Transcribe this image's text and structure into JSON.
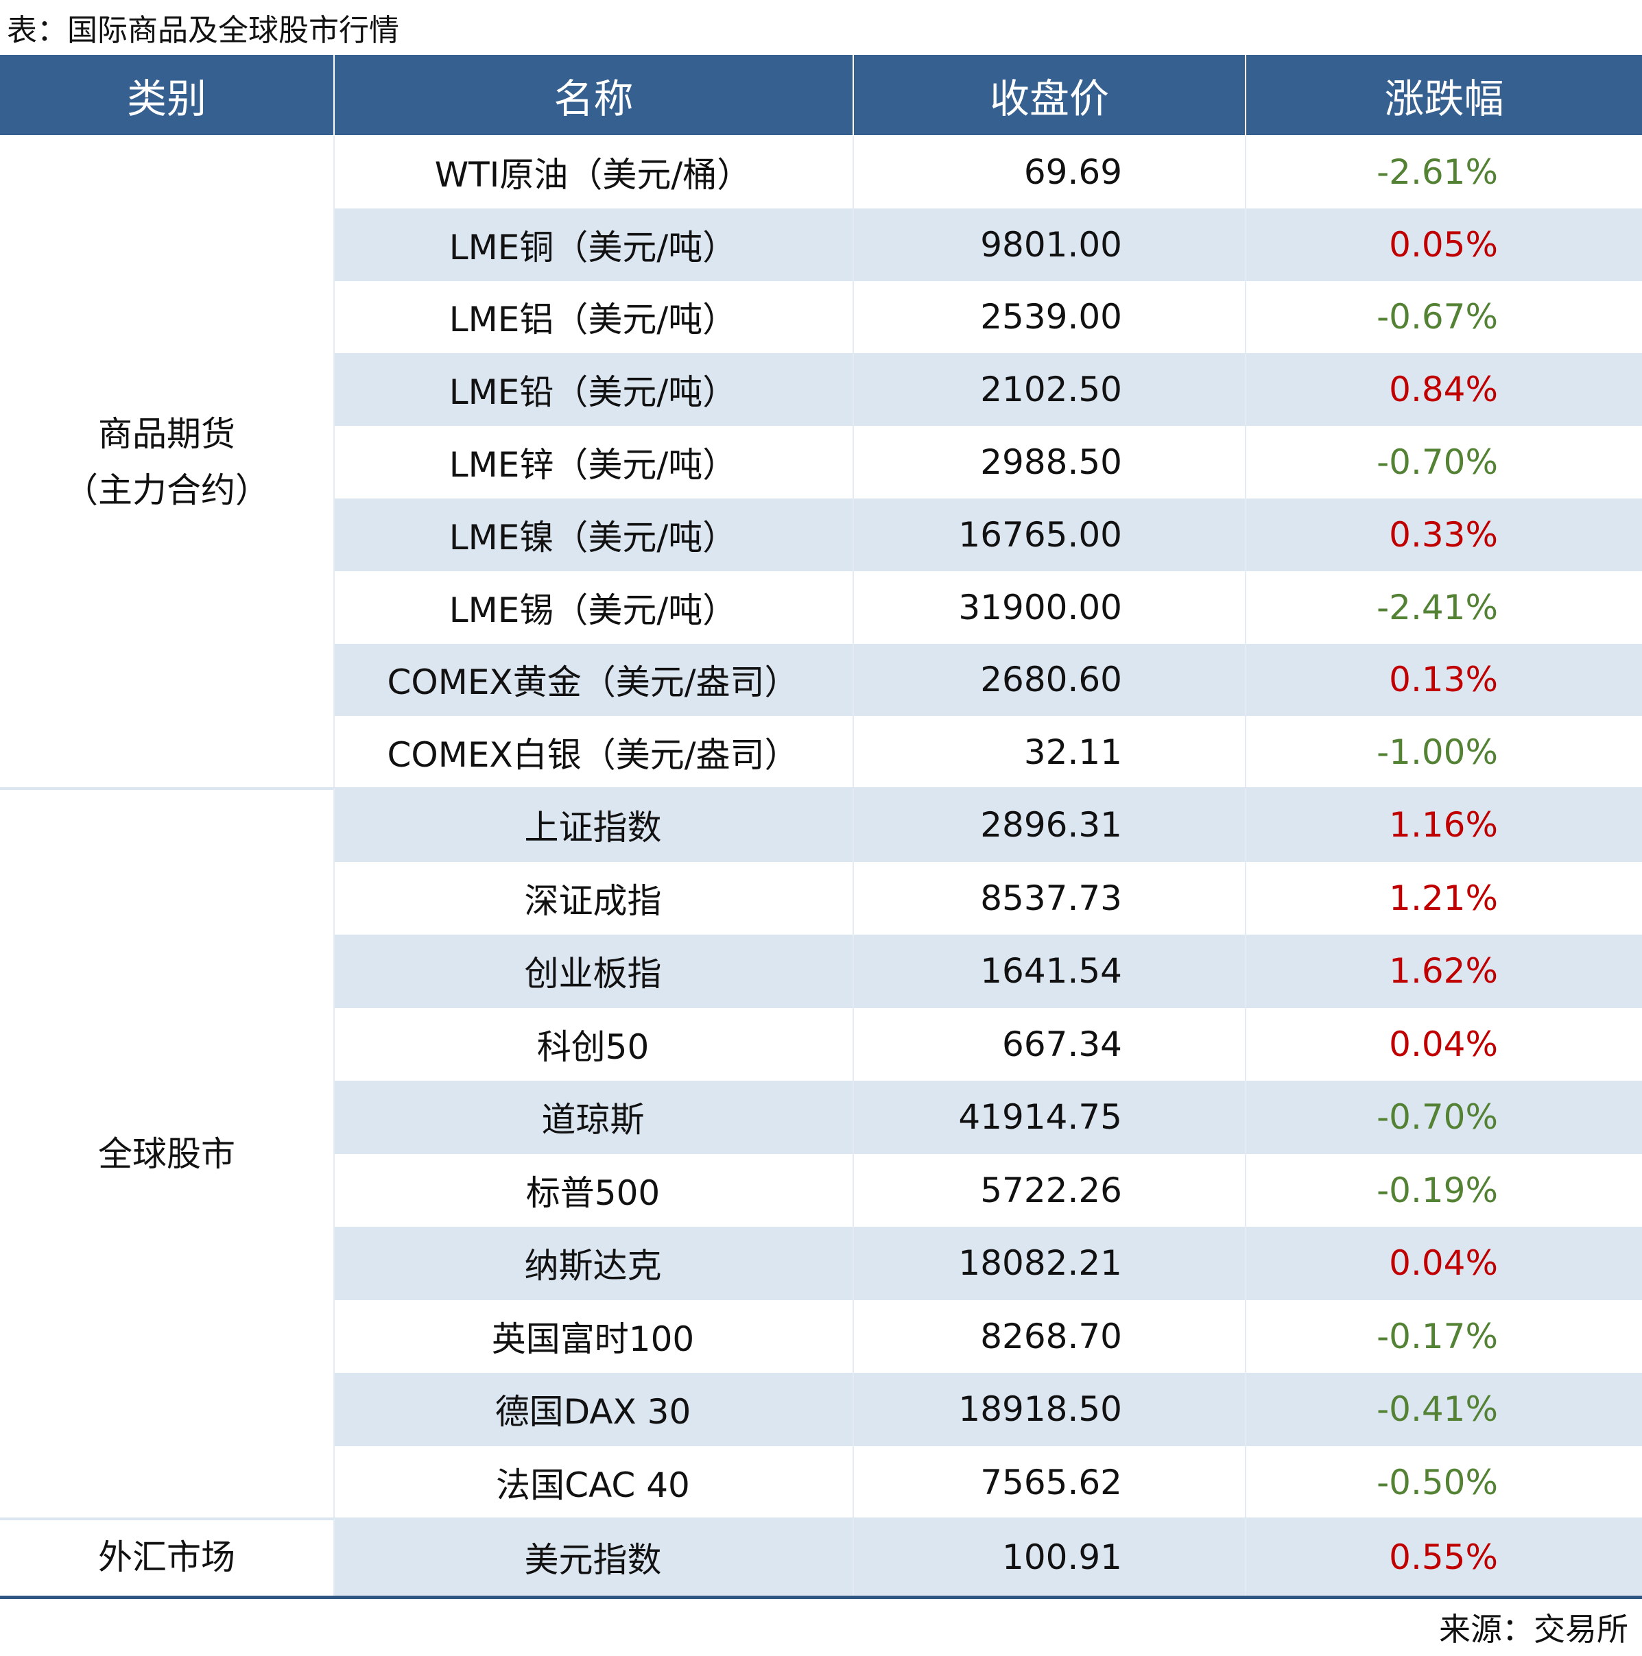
{
  "header": {
    "title": "表：国际商品及全球股市行情"
  },
  "table": {
    "columns": [
      "类别",
      "名称",
      "收盘价",
      "涨跌幅"
    ],
    "colors": {
      "header": "#35608f",
      "shade": "#dce6f1",
      "up": "#c00000",
      "down": "#548235",
      "rule": "#2f5582"
    },
    "groups": [
      {
        "category": [
          "商品期货",
          "（主力合约）"
        ],
        "rows": [
          [
            "WTI原油（美元/桶）",
            "69.69",
            "-2.61%"
          ],
          [
            "LME铜（美元/吨）",
            "9801.00",
            "0.05%"
          ],
          [
            "LME铝（美元/吨）",
            "2539.00",
            "-0.67%"
          ],
          [
            "LME铅（美元/吨）",
            "2102.50",
            "0.84%"
          ],
          [
            "LME锌（美元/吨）",
            "2988.50",
            "-0.70%"
          ],
          [
            "LME镍（美元/吨）",
            "16765.00",
            "0.33%"
          ],
          [
            "LME锡（美元/吨）",
            "31900.00",
            "-2.41%"
          ],
          [
            "COMEX黄金（美元/盎司）",
            "2680.60",
            "0.13%"
          ],
          [
            "COMEX白银（美元/盎司）",
            "32.11",
            "-1.00%"
          ]
        ]
      },
      {
        "category": [
          "全球股市"
        ],
        "rows": [
          [
            "上证指数",
            "2896.31",
            "1.16%"
          ],
          [
            "深证成指",
            "8537.73",
            "1.21%"
          ],
          [
            "创业板指",
            "1641.54",
            "1.62%"
          ],
          [
            "科创50",
            "667.34",
            "0.04%"
          ],
          [
            "道琼斯",
            "41914.75",
            "-0.70%"
          ],
          [
            "标普500",
            "5722.26",
            "-0.19%"
          ],
          [
            "纳斯达克",
            "18082.21",
            "0.04%"
          ],
          [
            "英国富时100",
            "8268.70",
            "-0.17%"
          ],
          [
            "德国DAX 30",
            "18918.50",
            "-0.41%"
          ],
          [
            "法国CAC 40",
            "7565.62",
            "-0.50%"
          ]
        ]
      },
      {
        "category": [
          "外汇市场"
        ],
        "rows": [
          [
            "美元指数",
            "100.91",
            "0.55%"
          ]
        ]
      }
    ]
  },
  "footer": {
    "source": "来源：交易所"
  }
}
